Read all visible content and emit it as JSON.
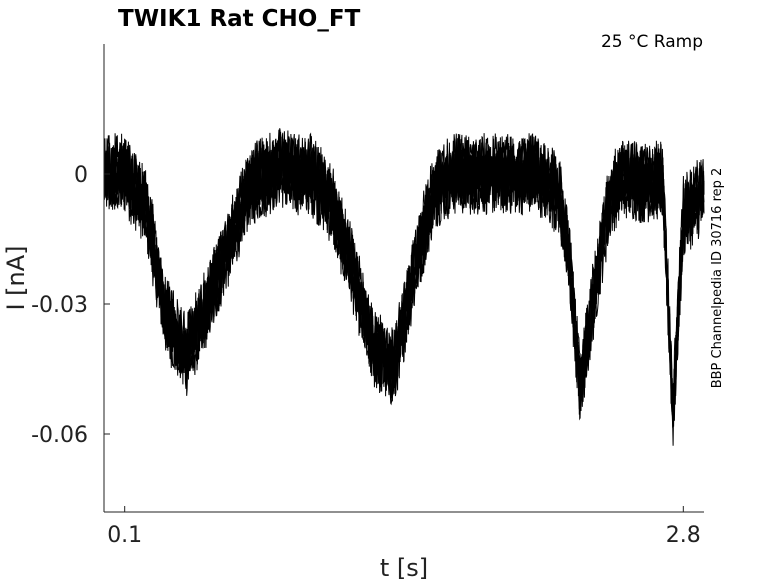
{
  "chart_data": {
    "type": "line",
    "title": "TWIK1  Rat  CHO_FT",
    "condition": "25 °C  Ramp",
    "side_label": "BBP Channelpedia ID 30716 rep 2",
    "xlabel": "t [s]",
    "ylabel": "I [nA]",
    "xlim": [
      0.0,
      2.9
    ],
    "ylim": [
      -0.078,
      0.03
    ],
    "xticks": [
      0.1,
      2.8
    ],
    "xtick_labels": [
      "0.1",
      "2.8"
    ],
    "yticks": [
      0,
      -0.03,
      -0.06
    ],
    "ytick_labels": [
      "0",
      "-0.03",
      "-0.06"
    ],
    "grid": false,
    "legend": "none",
    "noise_amplitude": 0.006,
    "sweep_count": 7,
    "series": [
      {
        "x": [
          0.0,
          0.1,
          0.2,
          0.3,
          0.4,
          0.5,
          0.6,
          0.7,
          0.8,
          0.85,
          0.9,
          1.0,
          1.1,
          1.2,
          1.3,
          1.4,
          1.5,
          1.6,
          1.7,
          1.75,
          1.8,
          2.0,
          2.1,
          2.2,
          2.25,
          2.3,
          2.4,
          2.45,
          2.5,
          2.55,
          2.6,
          2.7,
          2.75,
          2.8,
          2.9
        ],
        "y": [
          0.0,
          0.0,
          -0.007,
          -0.033,
          -0.042,
          -0.03,
          -0.017,
          -0.003,
          0.0,
          0.002,
          0.0,
          0.0,
          -0.007,
          -0.022,
          -0.04,
          -0.045,
          -0.022,
          -0.003,
          0.0,
          0.0,
          0.0,
          0.0,
          0.0,
          -0.005,
          -0.02,
          -0.05,
          -0.018,
          -0.005,
          -0.001,
          -0.001,
          -0.002,
          -0.001,
          -0.055,
          -0.01,
          -0.004
        ]
      }
    ]
  }
}
